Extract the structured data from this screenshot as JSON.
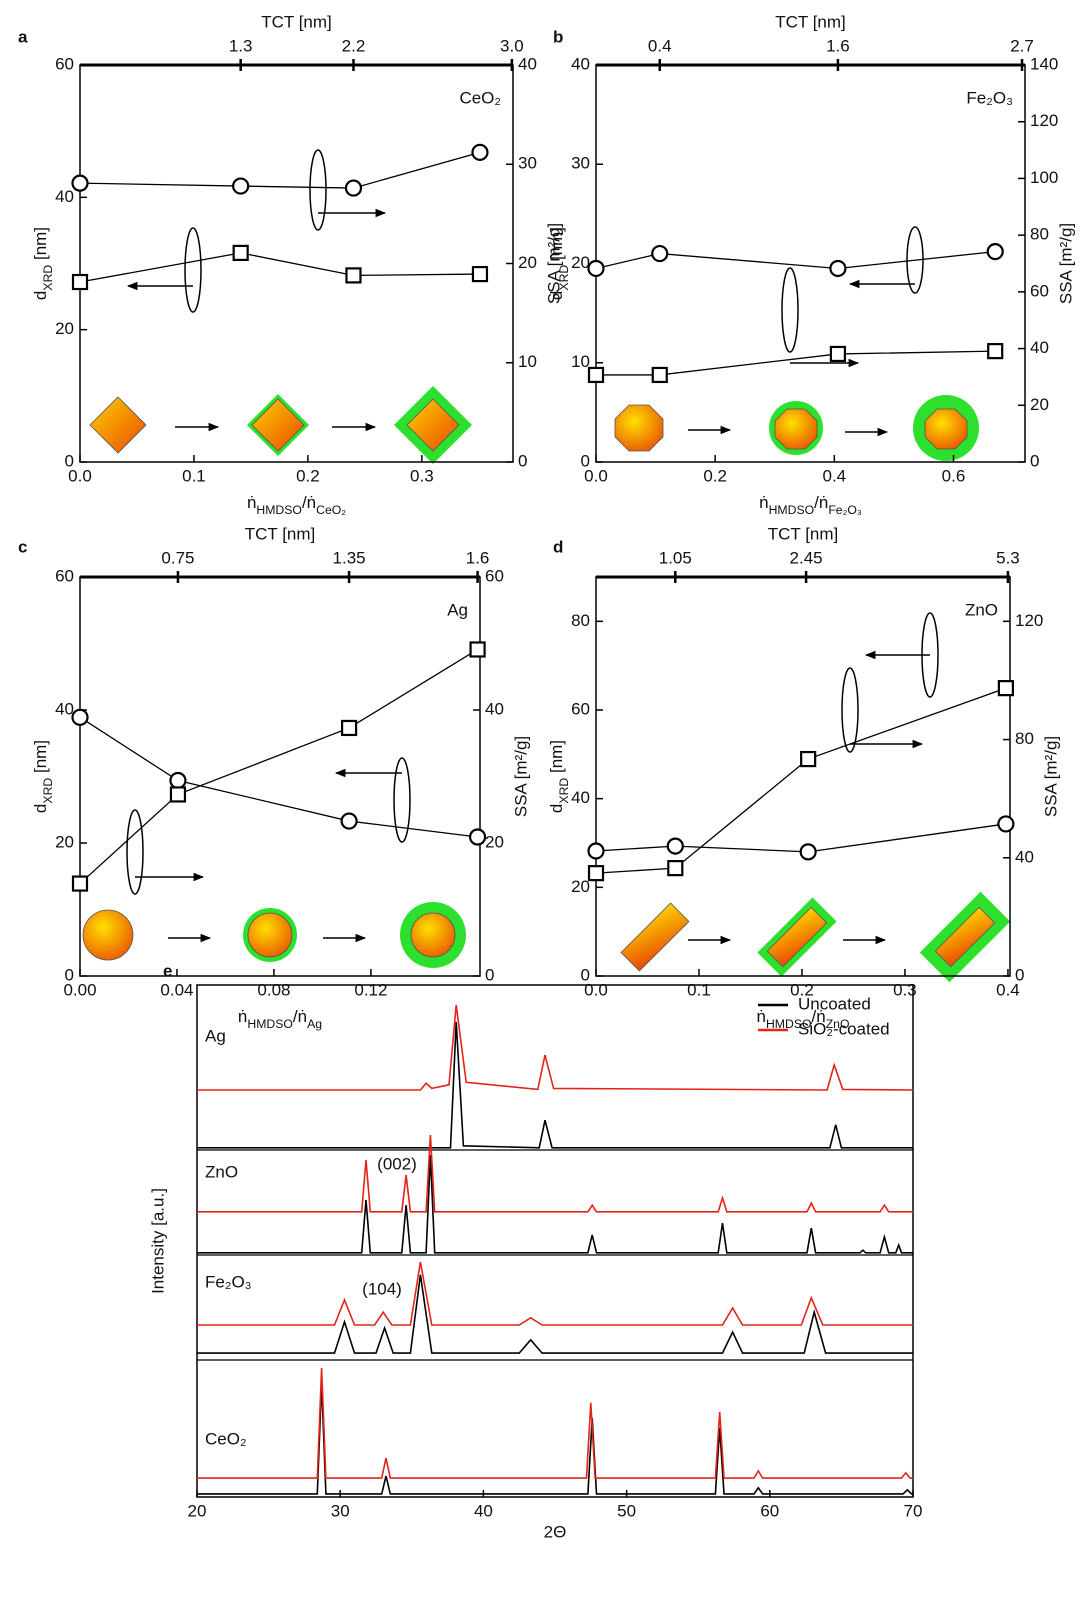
{
  "chart_data": [
    {
      "type": "line",
      "panel_label": "a",
      "title": "CeO₂",
      "x2label": "TCT [nm]",
      "xlabel": [
        "ṅ",
        "HMDSO",
        "/ṅ",
        "CeO₂"
      ],
      "ylabel": [
        "d",
        "XRD",
        " [nm]"
      ],
      "y2label": "SSA [m²/g]",
      "xlim": [
        0,
        0.38
      ],
      "xticks": [
        {
          "value": 0,
          "label": "0.0"
        },
        {
          "value": 0.1,
          "label": "0.1"
        },
        {
          "value": 0.2,
          "label": "0.2"
        },
        {
          "value": 0.3,
          "label": "0.3"
        }
      ],
      "ylim": [
        0,
        60
      ],
      "yticks": [
        0,
        20,
        40,
        60
      ],
      "y2lim": [
        0,
        40
      ],
      "y2ticks": [
        0,
        10,
        20,
        30,
        40
      ],
      "x2ticks": [
        1.3,
        2.2,
        {
          "value": 3,
          "label": "3.0"
        }
      ],
      "x2tick_x": [
        0.141,
        0.24,
        0.379
      ],
      "x": [
        0,
        0.141,
        0.24,
        0.351
      ],
      "series": [
        {
          "marker": "circle",
          "axis": "y2",
          "color": "#000000",
          "values": [
            28.1,
            27.8,
            27.6,
            31.2
          ]
        },
        {
          "marker": "square",
          "color": "#000000",
          "values": [
            27.2,
            31.6,
            28.2,
            28.4
          ]
        }
      ]
    },
    {
      "type": "line",
      "panel_label": "b",
      "title": "Fe₂O₃",
      "x2label": "TCT [nm]",
      "xlabel": [
        "ṅ",
        "HMDSO",
        "/ṅ",
        "Fe₂O₃"
      ],
      "ylabel": [
        "d",
        "XRD",
        " [nm]"
      ],
      "y2label": "SSA [m²/g]",
      "xlim": [
        0,
        0.72
      ],
      "xticks": [
        {
          "value": 0,
          "label": "0.0"
        },
        {
          "value": 0.2,
          "label": "0.2"
        },
        {
          "value": 0.4,
          "label": "0.4"
        },
        {
          "value": 0.6,
          "label": "0.6"
        }
      ],
      "ylim": [
        0,
        40
      ],
      "yticks": [
        0,
        10,
        20,
        30,
        40
      ],
      "y2lim": [
        0,
        140
      ],
      "y2ticks": [
        0,
        20,
        40,
        60,
        80,
        100,
        120,
        140
      ],
      "x2ticks": [
        0.4,
        1.6,
        2.7
      ],
      "x2tick_x": [
        0.107,
        0.406,
        0.715
      ],
      "x": [
        0,
        0.107,
        0.406,
        0.67
      ],
      "series": [
        {
          "marker": "circle",
          "color": "#000000",
          "values": [
            19.5,
            21.0,
            19.5,
            21.2
          ]
        },
        {
          "marker": "square",
          "axis": "y2",
          "color": "#000000",
          "values": [
            30.7,
            30.7,
            38.1,
            39.1
          ]
        }
      ]
    },
    {
      "type": "line",
      "panel_label": "c",
      "title": "Ag",
      "x2label": "TCT [nm]",
      "xlabel": [
        "ṅ",
        "HMDSO",
        "/ṅ",
        "Ag"
      ],
      "ylabel": [
        "d",
        "XRD",
        " [nm]"
      ],
      "y2label": "SSA [m²/g]",
      "xlim": [
        0,
        0.165
      ],
      "xticks": [
        {
          "value": 0,
          "label": "0.00"
        },
        {
          "value": 0.04,
          "label": "0.04"
        },
        {
          "value": 0.08,
          "label": "0.08"
        },
        {
          "value": 0.12,
          "label": "0.12"
        }
      ],
      "ylim": [
        0,
        60
      ],
      "yticks": [
        0,
        20,
        40,
        60
      ],
      "y2lim": [
        0,
        60
      ],
      "y2ticks": [
        0,
        20,
        40,
        60
      ],
      "x2ticks": [
        0.75,
        1.35,
        1.6
      ],
      "x2tick_x": [
        0.0404,
        0.111,
        0.164
      ],
      "x": [
        0,
        0.0404,
        0.111,
        0.164
      ],
      "series": [
        {
          "marker": "circle",
          "color": "#000000",
          "values": [
            38.9,
            29.4,
            23.3,
            20.9
          ]
        },
        {
          "marker": "square",
          "axis": "y2",
          "color": "#000000",
          "values": [
            13.9,
            27.3,
            37.3,
            49.1
          ]
        }
      ]
    },
    {
      "type": "line",
      "panel_label": "d",
      "title": "ZnO",
      "x2label": "TCT [nm]",
      "xlabel": [
        "ṅ",
        "HMDSO",
        "/ṅ",
        "ZnO"
      ],
      "ylabel": [
        "d",
        "XRD",
        " [nm]"
      ],
      "y2label": "SSA [m²/g]",
      "xlim": [
        0,
        0.402
      ],
      "xticks": [
        {
          "value": 0,
          "label": "0.0"
        },
        0.1,
        0.2,
        0.3,
        0.4
      ],
      "ylim": [
        0,
        90
      ],
      "yticks": [
        0,
        20,
        40,
        60,
        80
      ],
      "y2lim": [
        0,
        135
      ],
      "y2ticks": [
        0,
        40,
        80,
        120
      ],
      "x2ticks": [
        1.05,
        2.45,
        5.3
      ],
      "x2tick_x": [
        0.077,
        0.204,
        0.4
      ],
      "x": [
        0,
        0.077,
        0.206,
        0.398
      ],
      "series": [
        {
          "marker": "circle",
          "color": "#000000",
          "values": [
            28.2,
            29.3,
            28.0,
            34.3
          ]
        },
        {
          "marker": "square",
          "axis": "y2",
          "color": "#000000",
          "values": [
            34.8,
            36.5,
            73.4,
            97.4
          ]
        }
      ]
    },
    {
      "type": "line",
      "panel_label": "e",
      "xlabel": "2Θ",
      "ylabel": "Intensity [a.u.]",
      "xlim": [
        20,
        70
      ],
      "xticks": [
        20,
        30,
        40,
        50,
        60,
        70
      ],
      "ylim": [
        0,
        100
      ],
      "legend_position": "upper right",
      "sample_labels": [
        "Ag",
        "ZnO",
        "Fe₂O₃",
        "CeO₂"
      ],
      "annotations": [
        "(002)",
        "(104)"
      ],
      "series": [
        {
          "name": "Uncoated",
          "color": "#000000",
          "traces": [
            {
              "x": [
                20,
                37.7,
                38.1,
                38.6,
                43.9,
                44.3,
                44.8,
                64.2,
                64.6,
                65.0,
                70
              ],
              "values": [
                68.2,
                68.2,
                92.8,
                68.6,
                68.2,
                73.6,
                68.2,
                68.2,
                72.7,
                68.2,
                68.2
              ]
            },
            {
              "x": [
                20,
                31.5,
                31.8,
                32.1,
                34.3,
                34.6,
                34.9,
                36.0,
                36.3,
                36.6,
                47.3,
                47.6,
                47.9,
                56.4,
                56.7,
                57.0,
                62.6,
                62.9,
                63.2,
                66.3,
                66.5,
                66.7,
                67.7,
                68.0,
                68.3,
                68.8,
                69.0,
                69.2,
                70
              ],
              "values": [
                47.7,
                47.7,
                58.0,
                47.7,
                47.7,
                57.0,
                47.7,
                47.7,
                66.8,
                47.7,
                47.7,
                51.2,
                47.7,
                47.7,
                53.5,
                47.7,
                47.7,
                52.5,
                47.7,
                47.7,
                48.2,
                47.7,
                47.7,
                50.8,
                47.7,
                47.7,
                49.2,
                47.7,
                47.7
              ]
            },
            {
              "x": [
                20,
                29.6,
                30.3,
                31.0,
                32.5,
                33.1,
                33.7,
                34.9,
                35.6,
                36.4,
                42.5,
                43.3,
                44.1,
                56.7,
                57.4,
                58.1,
                62.4,
                63.1,
                63.9,
                70
              ],
              "values": [
                28.1,
                28.1,
                34.2,
                28.1,
                28.1,
                33.0,
                28.1,
                28.1,
                43.4,
                28.1,
                28.1,
                30.7,
                28.1,
                28.1,
                32.2,
                28.1,
                28.1,
                36.1,
                28.1,
                28.1
              ]
            },
            {
              "x": [
                20,
                28.4,
                28.7,
                29.0,
                32.9,
                33.2,
                33.5,
                47.3,
                47.6,
                47.9,
                56.2,
                56.5,
                56.8,
                58.9,
                59.2,
                59.5,
                69.3,
                69.6,
                69.9,
                70
              ],
              "values": [
                0.6,
                0.6,
                22.3,
                0.6,
                0.6,
                4.1,
                0.6,
                0.6,
                15.4,
                0.6,
                0.6,
                13.5,
                0.6,
                0.6,
                1.8,
                0.6,
                0.6,
                1.4,
                0.6,
                0.6
              ]
            }
          ]
        },
        {
          "name": "SiO₂-coated",
          "color": "#e3241b",
          "traces": [
            {
              "x": [
                20,
                35.6,
                36.0,
                36.4,
                37.6,
                38.1,
                38.8,
                43.8,
                44.3,
                44.9,
                64.0,
                64.5,
                65.1,
                70
              ],
              "values": [
                79.5,
                79.5,
                80.8,
                79.8,
                80.5,
                96.1,
                81.0,
                79.6,
                86.3,
                79.8,
                79.5,
                84.4,
                79.6,
                79.5
              ]
            },
            {
              "x": [
                20,
                31.5,
                31.8,
                32.1,
                34.3,
                34.6,
                34.9,
                36.0,
                36.3,
                36.6,
                47.3,
                47.6,
                47.9,
                56.4,
                56.7,
                57.0,
                62.6,
                62.9,
                63.2,
                67.7,
                68.0,
                68.3,
                70
              ],
              "values": [
                55.7,
                55.7,
                65.8,
                55.7,
                55.7,
                62.9,
                55.7,
                55.7,
                70.7,
                55.7,
                55.7,
                57.0,
                55.7,
                55.7,
                58.4,
                55.7,
                55.7,
                57.4,
                55.7,
                55.7,
                57.0,
                55.7,
                55.7
              ]
            },
            {
              "x": [
                20,
                29.6,
                30.3,
                31.0,
                32.4,
                33.0,
                33.6,
                34.9,
                35.6,
                36.4,
                42.5,
                43.3,
                44.1,
                56.7,
                57.4,
                58.1,
                62.2,
                62.9,
                63.7,
                70
              ],
              "values": [
                33.6,
                33.6,
                38.5,
                33.6,
                33.6,
                36.1,
                33.6,
                33.6,
                45.9,
                33.6,
                33.6,
                35.0,
                33.6,
                33.6,
                36.9,
                33.6,
                33.6,
                38.9,
                33.6,
                33.6
              ]
            },
            {
              "x": [
                20,
                28.4,
                28.7,
                29.0,
                32.9,
                33.2,
                33.5,
                47.2,
                47.5,
                47.8,
                56.2,
                56.5,
                56.8,
                58.9,
                59.2,
                59.5,
                69.2,
                69.5,
                69.8,
                70
              ],
              "values": [
                3.7,
                3.7,
                25.2,
                3.7,
                3.7,
                7.6,
                3.7,
                3.7,
                18.4,
                3.7,
                3.7,
                16.6,
                3.7,
                3.7,
                5.1,
                3.7,
                3.7,
                4.7,
                3.7,
                3.7
              ]
            }
          ]
        }
      ]
    }
  ]
}
